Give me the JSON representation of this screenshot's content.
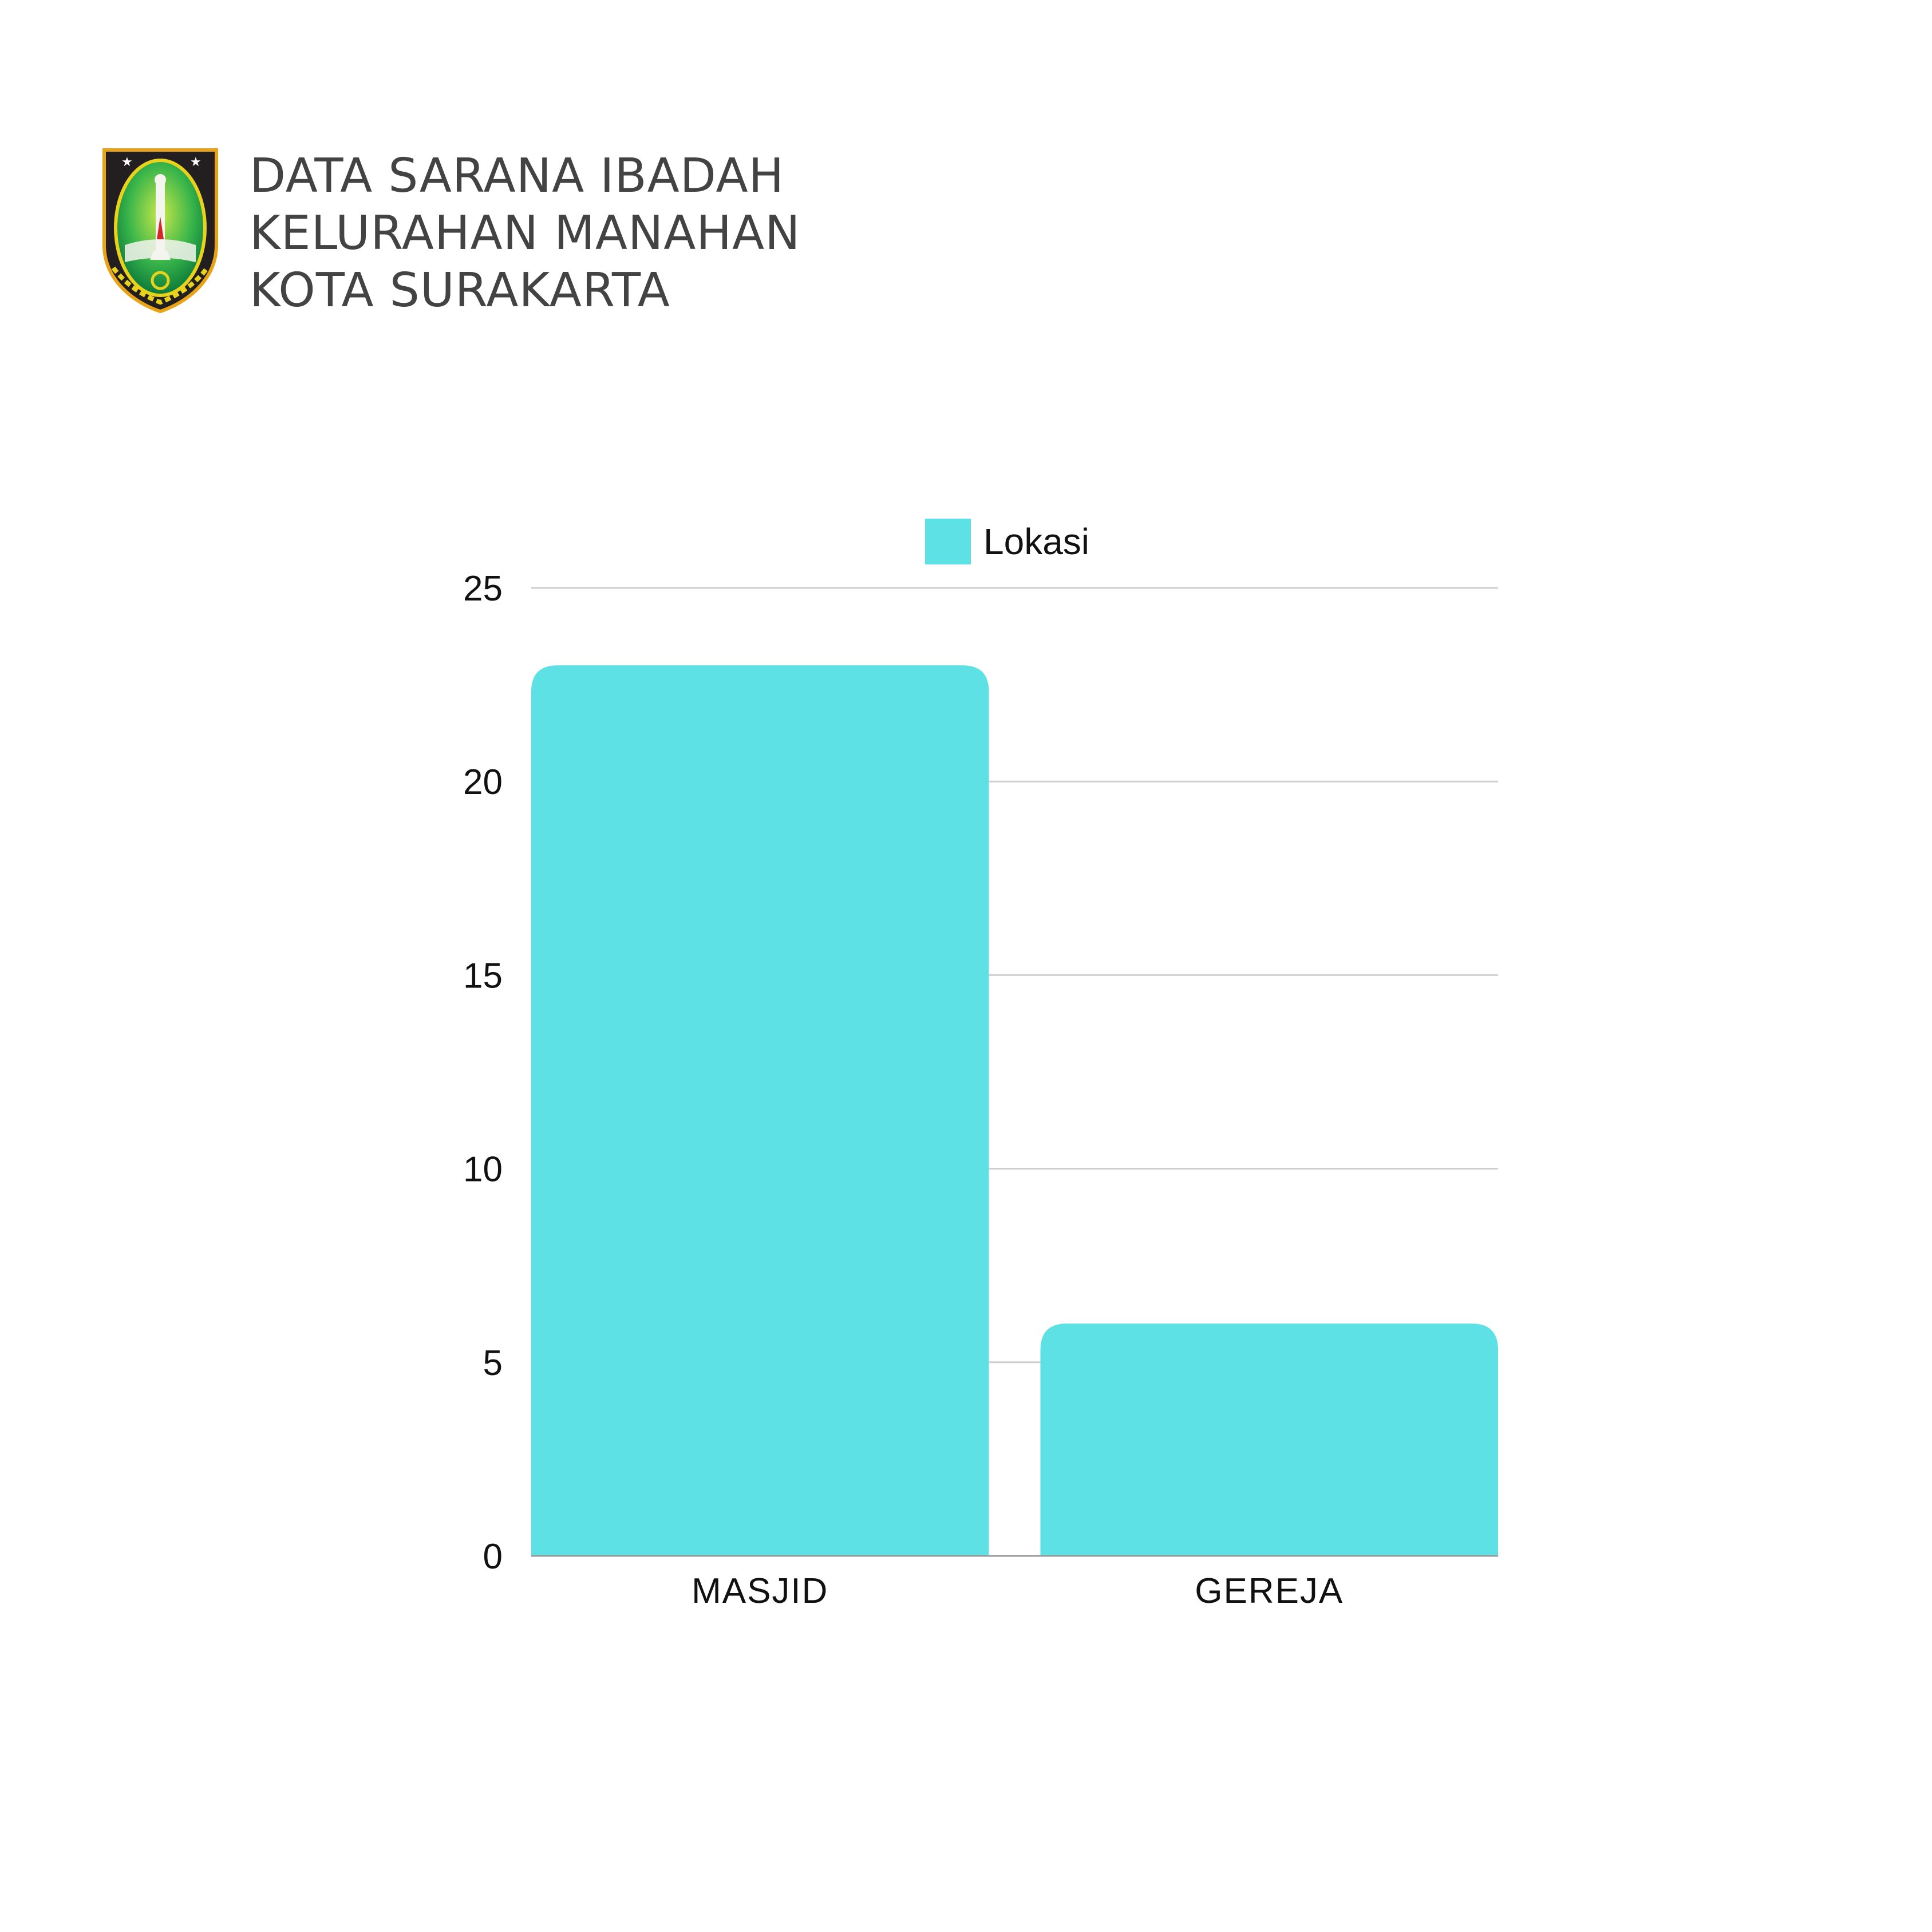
{
  "header": {
    "title_lines": [
      "DATA SARANA IBADAH",
      "KELURAHAN MANAHAN",
      "KOTA SURAKARTA"
    ],
    "emblem": "surakarta-coat-of-arms"
  },
  "colors": {
    "bar": "#5EE1E4",
    "grid": "#CFCFCF",
    "axis": "#9A9A9A",
    "title": "#434343"
  },
  "chart_data": {
    "type": "bar",
    "categories": [
      "MASJID",
      "GEREJA"
    ],
    "series": [
      {
        "name": "Lokasi",
        "values": [
          23,
          6
        ]
      }
    ],
    "ylim": [
      0,
      25
    ],
    "yticks": [
      0,
      5,
      10,
      15,
      20,
      25
    ],
    "legend": "top-center",
    "grid": true
  }
}
